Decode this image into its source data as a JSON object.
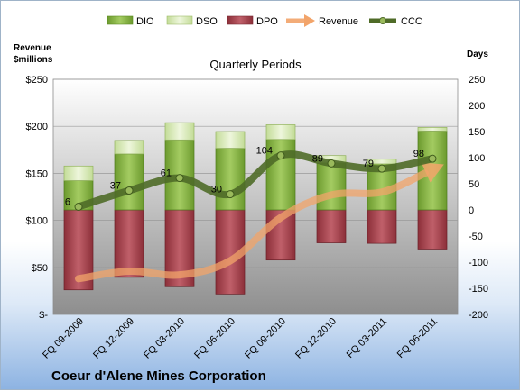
{
  "chart_data": {
    "type": "bar",
    "title": "Quarterly Periods",
    "subtitle": "Coeur d'Alene Mines Corporation",
    "left_axis_title_line1": "Revenue",
    "left_axis_title_line2": "$millions",
    "right_axis_title": "Days",
    "categories": [
      "FQ 09-2009",
      "FQ 12-2009",
      "FQ 03-2010",
      "FQ 06-2010",
      "FQ 09-2010",
      "FQ 12-2010",
      "FQ 03-2011",
      "FQ 06-2011"
    ],
    "left_ticks": [
      "$-",
      "$50",
      "$100",
      "$150",
      "$200",
      "$250"
    ],
    "left_ylim": [
      0,
      250
    ],
    "right_ticks": [
      "-200",
      "-150",
      "-100",
      "-50",
      "0",
      "50",
      "100",
      "150",
      "200",
      "250"
    ],
    "right_ylim": [
      -200,
      250
    ],
    "series": [
      {
        "name": "DIO",
        "kind": "bar-positive",
        "values": [
          56,
          107,
          134,
          118,
          135,
          90,
          88,
          151
        ]
      },
      {
        "name": "DSO",
        "kind": "bar-positive",
        "values": [
          28,
          26,
          33,
          32,
          28,
          14,
          9,
          7
        ]
      },
      {
        "name": "DPO",
        "kind": "bar-negative",
        "values": [
          -153,
          -129,
          -147,
          -161,
          -96,
          -63,
          -64,
          -75
        ]
      },
      {
        "name": "Revenue",
        "kind": "arrow-line",
        "values": [
          38,
          46,
          42,
          57,
          103,
          127,
          130,
          154
        ]
      },
      {
        "name": "CCC",
        "kind": "line",
        "values": [
          6,
          37,
          61,
          30,
          104,
          89,
          79,
          98
        ]
      }
    ],
    "ccc_labels": [
      "6",
      "37",
      "61",
      "30",
      "104",
      "89",
      "79",
      "98"
    ],
    "grid": true,
    "legend_position": "top",
    "colors": {
      "DIO": "#8cb84a",
      "DIO_dark": "#5c8a22",
      "DSO": "#d7e8b4",
      "DSO_dark": "#9fbd6b",
      "DPO": "#a8424c",
      "DPO_dark": "#7a2a33",
      "Revenue": "#f2a46a",
      "CCC": "#4f6b28",
      "CCC_marker": "#9aba5c",
      "plot_top": "#ffffff",
      "plot_bottom": "#8e8e8e"
    }
  }
}
